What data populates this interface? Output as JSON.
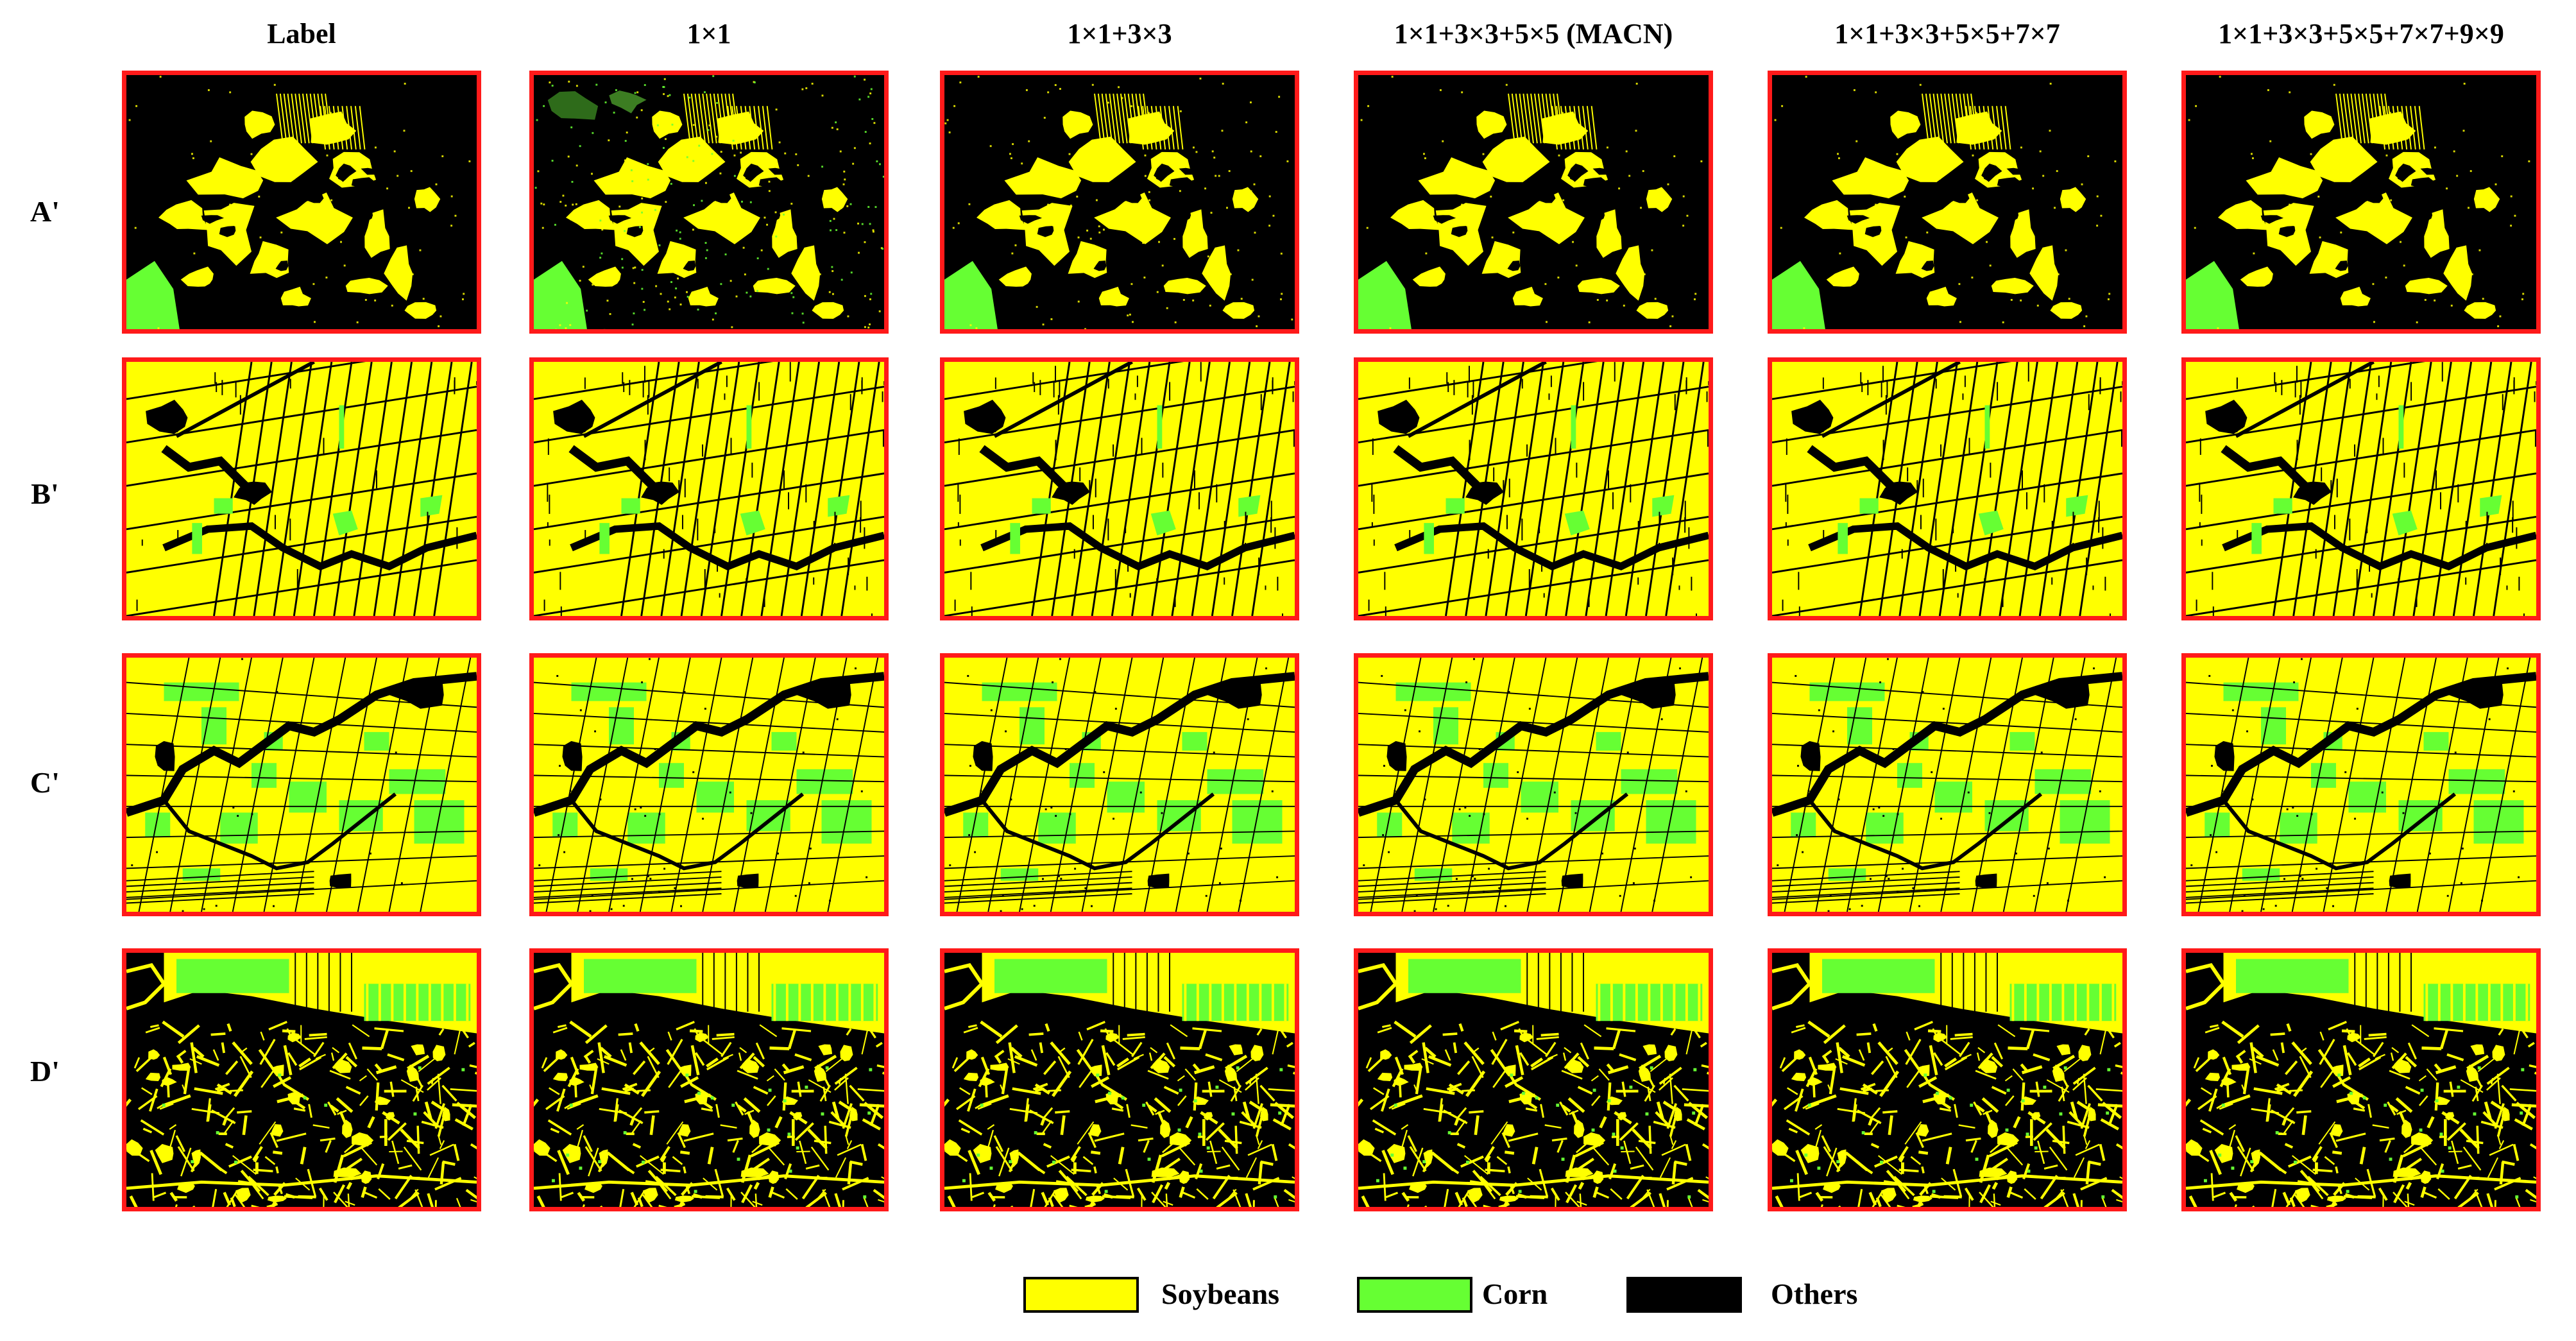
{
  "columns": [
    {
      "key": "label",
      "title": "Label"
    },
    {
      "key": "k1",
      "title": "1×1"
    },
    {
      "key": "k3",
      "title": "1×1+3×3"
    },
    {
      "key": "k5",
      "title": "1×1+3×3+5×5 (MACN)"
    },
    {
      "key": "k7",
      "title": "1×1+3×3+5×5+7×7"
    },
    {
      "key": "k9",
      "title": "1×1+3×3+5×5+7×7+9×9"
    }
  ],
  "rows": [
    {
      "key": "A",
      "label": "A'"
    },
    {
      "key": "B",
      "label": "B'"
    },
    {
      "key": "C",
      "label": "C'"
    },
    {
      "key": "D",
      "label": "D'"
    }
  ],
  "legend": [
    {
      "label": "Soybeans",
      "color": "#ffff00"
    },
    {
      "label": "Corn",
      "color": "#66ff33"
    },
    {
      "label": "Others",
      "color": "#000000"
    }
  ],
  "panel_border_color": "#ff1a1a"
}
